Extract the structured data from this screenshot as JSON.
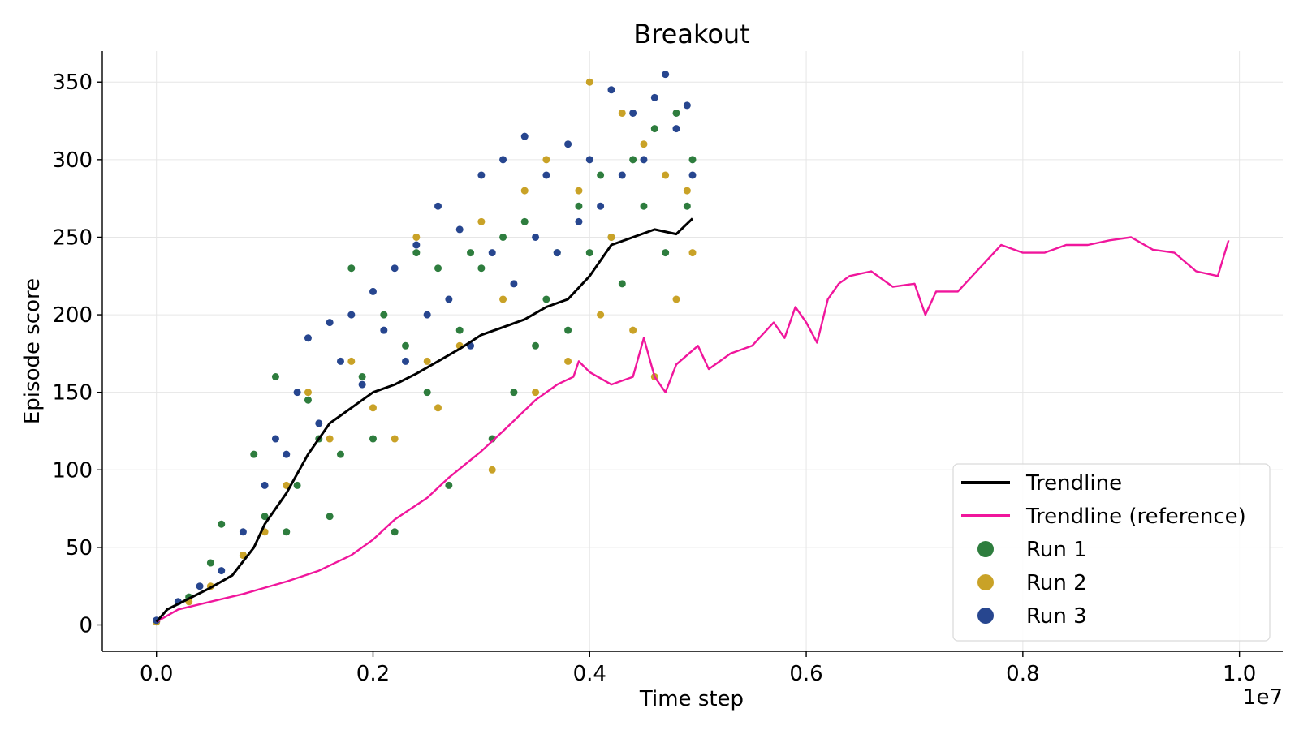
{
  "chart_data": {
    "type": "scatter",
    "title": "Breakout",
    "xlabel": "Time step",
    "ylabel": "Episode score",
    "x_scale_note": "1e7",
    "xlim": [
      -0.05,
      1.04
    ],
    "ylim": [
      -17,
      370
    ],
    "grid": true,
    "legend_placement": "bottom-right",
    "x_ticks": [
      0.0,
      0.2,
      0.4,
      0.6,
      0.8,
      1.0
    ],
    "x_tick_labels": [
      "0.0",
      "0.2",
      "0.4",
      "0.6",
      "0.8",
      "1.0"
    ],
    "y_ticks": [
      0,
      50,
      100,
      150,
      200,
      250,
      300,
      350
    ],
    "y_tick_labels": [
      "0",
      "50",
      "100",
      "150",
      "200",
      "250",
      "300",
      "350"
    ],
    "series": [
      {
        "name": "Trendline",
        "kind": "line",
        "color": "#000000",
        "x": [
          0.0,
          0.01,
          0.03,
          0.05,
          0.07,
          0.09,
          0.1,
          0.12,
          0.14,
          0.16,
          0.18,
          0.2,
          0.22,
          0.24,
          0.26,
          0.28,
          0.3,
          0.32,
          0.34,
          0.36,
          0.38,
          0.4,
          0.42,
          0.44,
          0.46,
          0.48,
          0.495
        ],
        "y": [
          2,
          10,
          17,
          24,
          32,
          50,
          65,
          85,
          110,
          130,
          140,
          150,
          155,
          162,
          170,
          178,
          187,
          192,
          197,
          205,
          210,
          225,
          245,
          250,
          255,
          252,
          262
        ]
      },
      {
        "name": "Trendline (reference)",
        "kind": "line",
        "color": "#f0169c",
        "x": [
          0.0,
          0.02,
          0.05,
          0.08,
          0.1,
          0.12,
          0.15,
          0.18,
          0.2,
          0.22,
          0.25,
          0.27,
          0.3,
          0.32,
          0.35,
          0.37,
          0.385,
          0.39,
          0.4,
          0.42,
          0.44,
          0.45,
          0.46,
          0.47,
          0.48,
          0.5,
          0.51,
          0.53,
          0.55,
          0.57,
          0.58,
          0.59,
          0.6,
          0.61,
          0.62,
          0.63,
          0.64,
          0.66,
          0.68,
          0.7,
          0.71,
          0.72,
          0.74,
          0.76,
          0.78,
          0.8,
          0.82,
          0.84,
          0.86,
          0.88,
          0.9,
          0.92,
          0.94,
          0.96,
          0.98,
          0.99
        ],
        "y": [
          2,
          10,
          15,
          20,
          24,
          28,
          35,
          45,
          55,
          68,
          82,
          95,
          112,
          125,
          145,
          155,
          160,
          170,
          163,
          155,
          160,
          185,
          160,
          150,
          168,
          180,
          165,
          175,
          180,
          195,
          185,
          205,
          195,
          182,
          210,
          220,
          225,
          228,
          218,
          220,
          200,
          215,
          215,
          230,
          245,
          240,
          240,
          245,
          245,
          248,
          250,
          242,
          240,
          228,
          225,
          248
        ]
      },
      {
        "name": "Run 1",
        "kind": "scatter",
        "color": "#2e7d3e",
        "x": [
          0.0,
          0.03,
          0.05,
          0.06,
          0.08,
          0.09,
          0.1,
          0.11,
          0.12,
          0.13,
          0.14,
          0.15,
          0.16,
          0.17,
          0.18,
          0.19,
          0.2,
          0.21,
          0.22,
          0.23,
          0.24,
          0.25,
          0.26,
          0.27,
          0.28,
          0.29,
          0.3,
          0.31,
          0.32,
          0.33,
          0.34,
          0.35,
          0.36,
          0.37,
          0.38,
          0.39,
          0.4,
          0.41,
          0.42,
          0.43,
          0.44,
          0.45,
          0.46,
          0.47,
          0.48,
          0.49,
          0.495
        ],
        "y": [
          2,
          18,
          40,
          65,
          45,
          110,
          70,
          160,
          60,
          90,
          145,
          120,
          70,
          110,
          230,
          160,
          120,
          200,
          60,
          180,
          240,
          150,
          230,
          90,
          190,
          240,
          230,
          120,
          250,
          150,
          260,
          180,
          210,
          240,
          190,
          270,
          240,
          290,
          250,
          220,
          300,
          270,
          320,
          240,
          330,
          270,
          300
        ]
      },
      {
        "name": "Run 2",
        "kind": "scatter",
        "color": "#c9a227",
        "x": [
          0.0,
          0.03,
          0.05,
          0.08,
          0.1,
          0.12,
          0.14,
          0.16,
          0.18,
          0.2,
          0.22,
          0.24,
          0.25,
          0.26,
          0.28,
          0.3,
          0.31,
          0.32,
          0.34,
          0.35,
          0.36,
          0.38,
          0.39,
          0.4,
          0.41,
          0.42,
          0.43,
          0.44,
          0.45,
          0.46,
          0.47,
          0.48,
          0.49,
          0.495
        ],
        "y": [
          2,
          15,
          25,
          45,
          60,
          90,
          150,
          120,
          170,
          140,
          120,
          250,
          170,
          140,
          180,
          260,
          100,
          210,
          280,
          150,
          300,
          170,
          280,
          350,
          200,
          250,
          330,
          190,
          310,
          160,
          290,
          210,
          280,
          240
        ]
      },
      {
        "name": "Run 3",
        "kind": "scatter",
        "color": "#27468f",
        "x": [
          0.0,
          0.02,
          0.04,
          0.06,
          0.08,
          0.1,
          0.11,
          0.12,
          0.13,
          0.14,
          0.15,
          0.16,
          0.17,
          0.18,
          0.19,
          0.2,
          0.21,
          0.22,
          0.23,
          0.24,
          0.25,
          0.26,
          0.27,
          0.28,
          0.29,
          0.3,
          0.31,
          0.32,
          0.33,
          0.34,
          0.35,
          0.36,
          0.37,
          0.38,
          0.39,
          0.4,
          0.41,
          0.42,
          0.43,
          0.44,
          0.45,
          0.46,
          0.47,
          0.48,
          0.49,
          0.495
        ],
        "y": [
          3,
          15,
          25,
          35,
          60,
          90,
          120,
          110,
          150,
          185,
          130,
          195,
          170,
          200,
          155,
          215,
          190,
          230,
          170,
          245,
          200,
          270,
          210,
          255,
          180,
          290,
          240,
          300,
          220,
          315,
          250,
          290,
          240,
          310,
          260,
          300,
          270,
          345,
          290,
          330,
          300,
          340,
          355,
          320,
          335,
          290
        ]
      }
    ]
  }
}
